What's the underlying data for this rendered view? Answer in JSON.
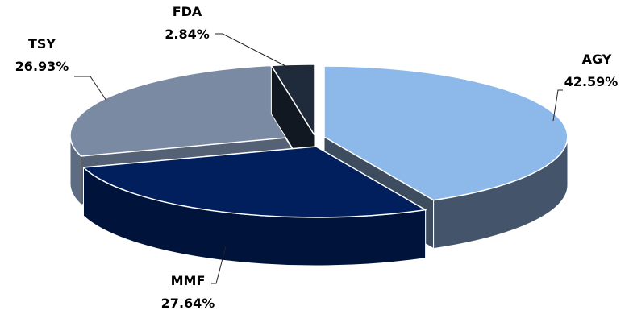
{
  "chart_data": {
    "type": "pie",
    "title": "",
    "slices": [
      {
        "name": "AGY",
        "value": 42.59,
        "label": "42.59%",
        "color": "#8DB8EA",
        "side": "#44546A"
      },
      {
        "name": "MMF",
        "value": 27.64,
        "label": "27.64%",
        "color": "#001F5C",
        "side": "#00133A"
      },
      {
        "name": "TSY",
        "value": 26.93,
        "label": "26.93%",
        "color": "#7B8AA3",
        "side": "#5E6C82"
      },
      {
        "name": "FDA",
        "value": 2.84,
        "label": "2.84%",
        "color": "#1F2A3A",
        "side": "#141B26"
      }
    ]
  }
}
